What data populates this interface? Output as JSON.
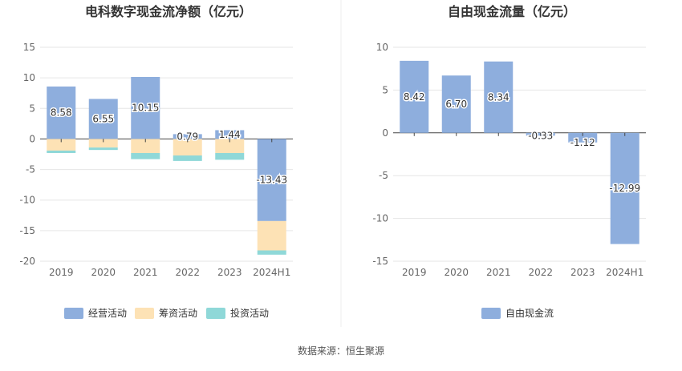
{
  "chart_data": [
    {
      "type": "bar",
      "stacked": true,
      "title": "电科数字现金流净额（亿元）",
      "categories": [
        "2019",
        "2020",
        "2021",
        "2022",
        "2023",
        "2024H1"
      ],
      "ylim": [
        -20,
        15
      ],
      "yticks": [
        "15",
        "10",
        "5",
        "0",
        "-5",
        "-10",
        "-15",
        "-20"
      ],
      "grid": true,
      "legend_position": "bottom",
      "series": [
        {
          "name": "经营活动",
          "color": "#8eaedd",
          "values": [
            8.58,
            6.55,
            10.15,
            0.79,
            1.44,
            -13.43
          ],
          "labels": [
            "8.58",
            "6.55",
            "10.15",
            "0.79",
            "1.44",
            "-13.43"
          ]
        },
        {
          "name": "筹资活动",
          "color": "#fde2b5",
          "values": [
            -1.9,
            -1.4,
            -2.3,
            -2.7,
            -2.3,
            -4.8
          ]
        },
        {
          "name": "投资活动",
          "color": "#8fd8d8",
          "values": [
            -0.4,
            -0.4,
            -1.0,
            -0.9,
            -1.1,
            -0.7
          ]
        }
      ]
    },
    {
      "type": "bar",
      "title": "自由现金流量（亿元）",
      "categories": [
        "2019",
        "2020",
        "2021",
        "2022",
        "2023",
        "2024H1"
      ],
      "ylim": [
        -15,
        10
      ],
      "yticks": [
        "10",
        "5",
        "0",
        "-5",
        "-10",
        "-15"
      ],
      "grid": true,
      "legend_position": "bottom",
      "series": [
        {
          "name": "自由现金流",
          "color": "#8eaedd",
          "values": [
            8.42,
            6.7,
            8.34,
            -0.33,
            -1.12,
            -12.99
          ],
          "labels": [
            "8.42",
            "6.70",
            "8.34",
            "-0.33",
            "-1.12",
            "-12.99"
          ]
        }
      ]
    }
  ],
  "footer": {
    "source": "数据来源：恒生聚源"
  }
}
